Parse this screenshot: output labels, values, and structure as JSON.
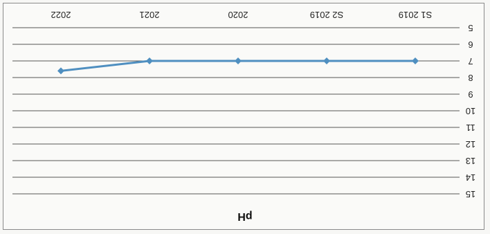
{
  "chart_data": {
    "type": "line",
    "title": "pH",
    "categories": [
      "S1 2019",
      "S2 2019",
      "2020",
      "2021",
      "2022"
    ],
    "series": [
      {
        "values": [
          7,
          7,
          7,
          7,
          7.6
        ]
      }
    ],
    "ylim": [
      5,
      15
    ],
    "y_ticks": [
      "5",
      "6",
      "7",
      "8",
      "9",
      "10",
      "11",
      "12",
      "13",
      "14",
      "15"
    ],
    "y_inverted": true,
    "grid": true,
    "legend": "none",
    "colors": {
      "line": "#4f8fc0",
      "marker": "#4f8fc0",
      "grid": "#555555"
    }
  }
}
